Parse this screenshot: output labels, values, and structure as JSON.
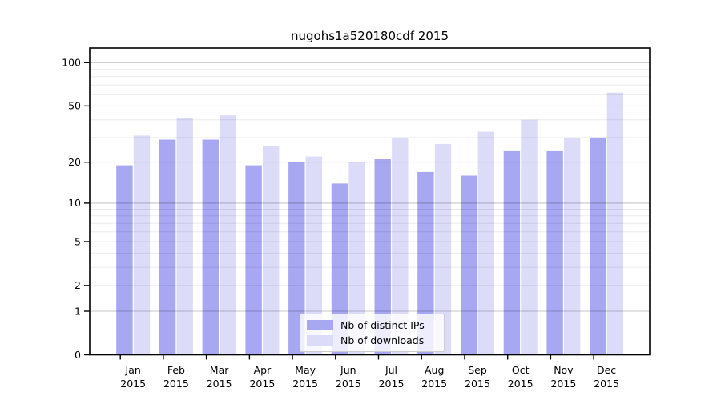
{
  "window": {
    "background": "#ffffff"
  },
  "chart_data": {
    "type": "bar",
    "title": "nugohs1a520180cdf 2015",
    "categories": [
      "Jan",
      "Feb",
      "Mar",
      "Apr",
      "May",
      "Jun",
      "Jul",
      "Aug",
      "Sep",
      "Oct",
      "Nov",
      "Dec"
    ],
    "year": "2015",
    "series": [
      {
        "name": "Nb of distinct IPs",
        "color": "#a7a7f2",
        "values": [
          19,
          29,
          29,
          19,
          20,
          14,
          21,
          17,
          16,
          24,
          24,
          30
        ]
      },
      {
        "name": "Nb of downloads",
        "color": "#dcdcf9",
        "values": [
          31,
          41,
          43,
          26,
          22,
          20,
          30,
          27,
          33,
          40,
          30,
          62
        ]
      }
    ],
    "xlabel": "",
    "ylabel": "",
    "ylim": [
      0,
      100
    ],
    "y_ticks": [
      0,
      1,
      2,
      5,
      10,
      20,
      50,
      100
    ],
    "y_scale": "log10(1+value)",
    "grid": "horizontal major+minor, drawn over bars",
    "legend_position": "bottom-center-inside",
    "colors": {
      "major_grid": "rgba(0,0,0,0.22)",
      "minor_grid": "rgba(0,0,0,0.08)",
      "frame": "#000000",
      "text": "#000000"
    }
  }
}
